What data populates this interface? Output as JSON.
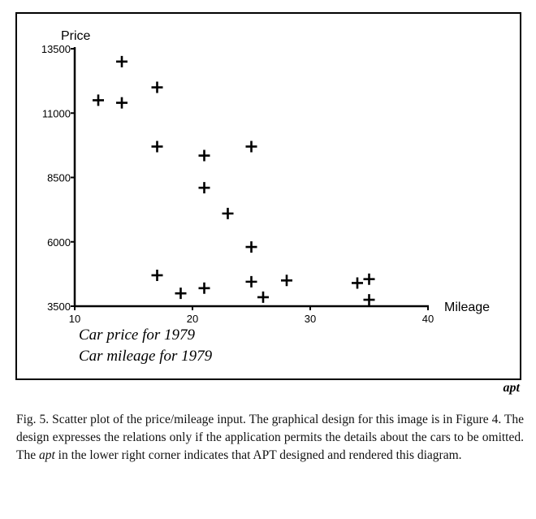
{
  "chart_data": {
    "type": "scatter",
    "xlabel": "Mileage",
    "ylabel": "Price",
    "xlim": [
      10,
      40
    ],
    "ylim": [
      3500,
      13500
    ],
    "x_ticks": [
      "10",
      "20",
      "30",
      "40"
    ],
    "y_ticks": [
      "3500",
      "6000",
      "8500",
      "11000",
      "13500"
    ],
    "marker": "plus",
    "grid": false,
    "legend": [
      "Car price for 1979",
      "Car mileage for 1979"
    ],
    "signature": "apt",
    "points": [
      {
        "x": 12,
        "y": 11500
      },
      {
        "x": 14,
        "y": 13000
      },
      {
        "x": 14,
        "y": 11400
      },
      {
        "x": 17,
        "y": 12000
      },
      {
        "x": 17,
        "y": 9700
      },
      {
        "x": 21,
        "y": 9350
      },
      {
        "x": 25,
        "y": 9700
      },
      {
        "x": 21,
        "y": 8100
      },
      {
        "x": 23,
        "y": 7100
      },
      {
        "x": 25,
        "y": 5800
      },
      {
        "x": 17,
        "y": 4700
      },
      {
        "x": 19,
        "y": 4000
      },
      {
        "x": 21,
        "y": 4200
      },
      {
        "x": 25,
        "y": 4450
      },
      {
        "x": 26,
        "y": 3850
      },
      {
        "x": 28,
        "y": 4500
      },
      {
        "x": 34,
        "y": 4400
      },
      {
        "x": 35,
        "y": 4550
      },
      {
        "x": 35,
        "y": 3750
      }
    ]
  },
  "caption": {
    "label": "Fig. 5.",
    "text_before": " Scatter plot of the price/mileage input. The graphical design for this image is in Figure 4. The design expresses the relations only if the application permits the details about the cars to be omitted. The ",
    "emph": "apt",
    "text_after": " in the lower right corner indicates that APT designed and rendered this diagram."
  }
}
